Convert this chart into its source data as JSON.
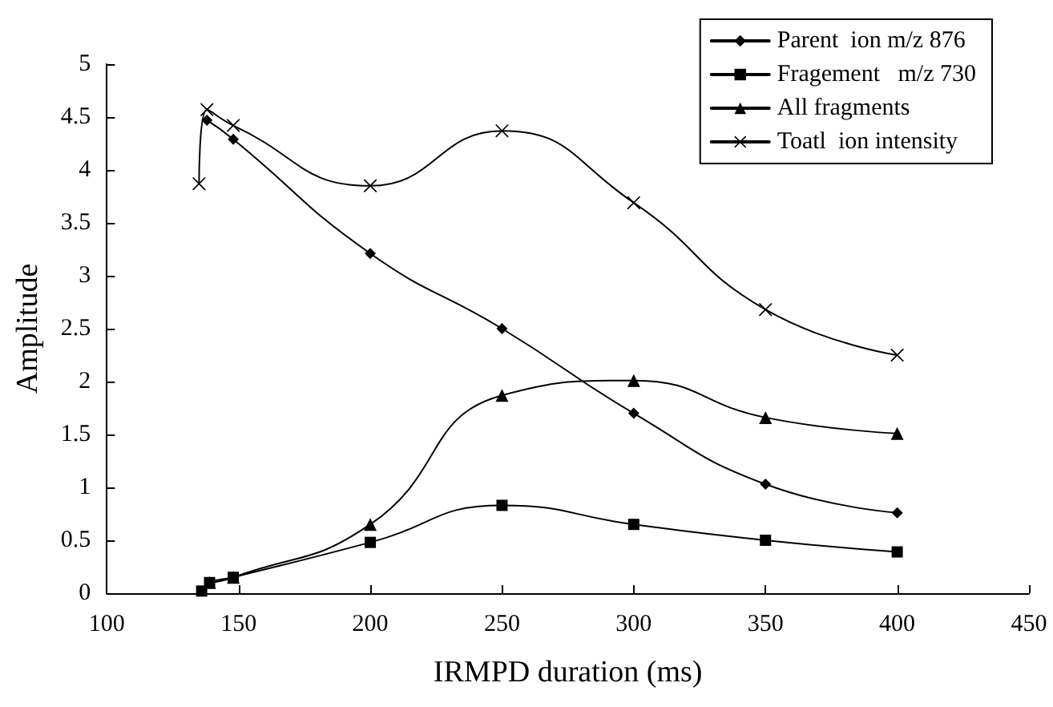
{
  "chart_data": {
    "type": "line",
    "xlabel": "IRMPD duration (ms)",
    "ylabel": "Amplitude",
    "xlim": [
      100,
      450
    ],
    "xticks": [
      100,
      150,
      200,
      250,
      300,
      350,
      400,
      450
    ],
    "ylim": [
      0,
      5
    ],
    "yticks": [
      0,
      0.5,
      1,
      1.5,
      2,
      2.5,
      3,
      3.5,
      4,
      4.5,
      5
    ],
    "grid": false,
    "legend": "top right",
    "series": [
      {
        "name": "Parent  ion m/z 876",
        "color": "#000000",
        "marker": "diamond",
        "x": [
          138,
          148,
          200,
          250,
          300,
          350,
          400
        ],
        "values": [
          4.47,
          4.29,
          3.21,
          2.5,
          1.7,
          1.03,
          0.76
        ]
      },
      {
        "name": "Fragement   m/z 730",
        "color": "#000000",
        "marker": "square",
        "x": [
          136,
          139,
          148,
          200,
          250,
          300,
          350,
          400
        ],
        "values": [
          0.02,
          0.1,
          0.15,
          0.48,
          0.83,
          0.65,
          0.5,
          0.39
        ]
      },
      {
        "name": "All fragments",
        "color": "#000000",
        "marker": "triangle",
        "x": [
          139,
          148,
          200,
          250,
          300,
          350,
          400
        ],
        "values": [
          0.1,
          0.15,
          0.65,
          1.87,
          2.01,
          1.66,
          1.51
        ]
      },
      {
        "name": "Toatl  ion intensity",
        "color": "#000000",
        "marker": "cross",
        "x": [
          135,
          138,
          148,
          200,
          250,
          300,
          350,
          400
        ],
        "values": [
          3.87,
          4.57,
          4.42,
          3.85,
          4.37,
          3.69,
          2.68,
          2.25
        ]
      }
    ]
  }
}
